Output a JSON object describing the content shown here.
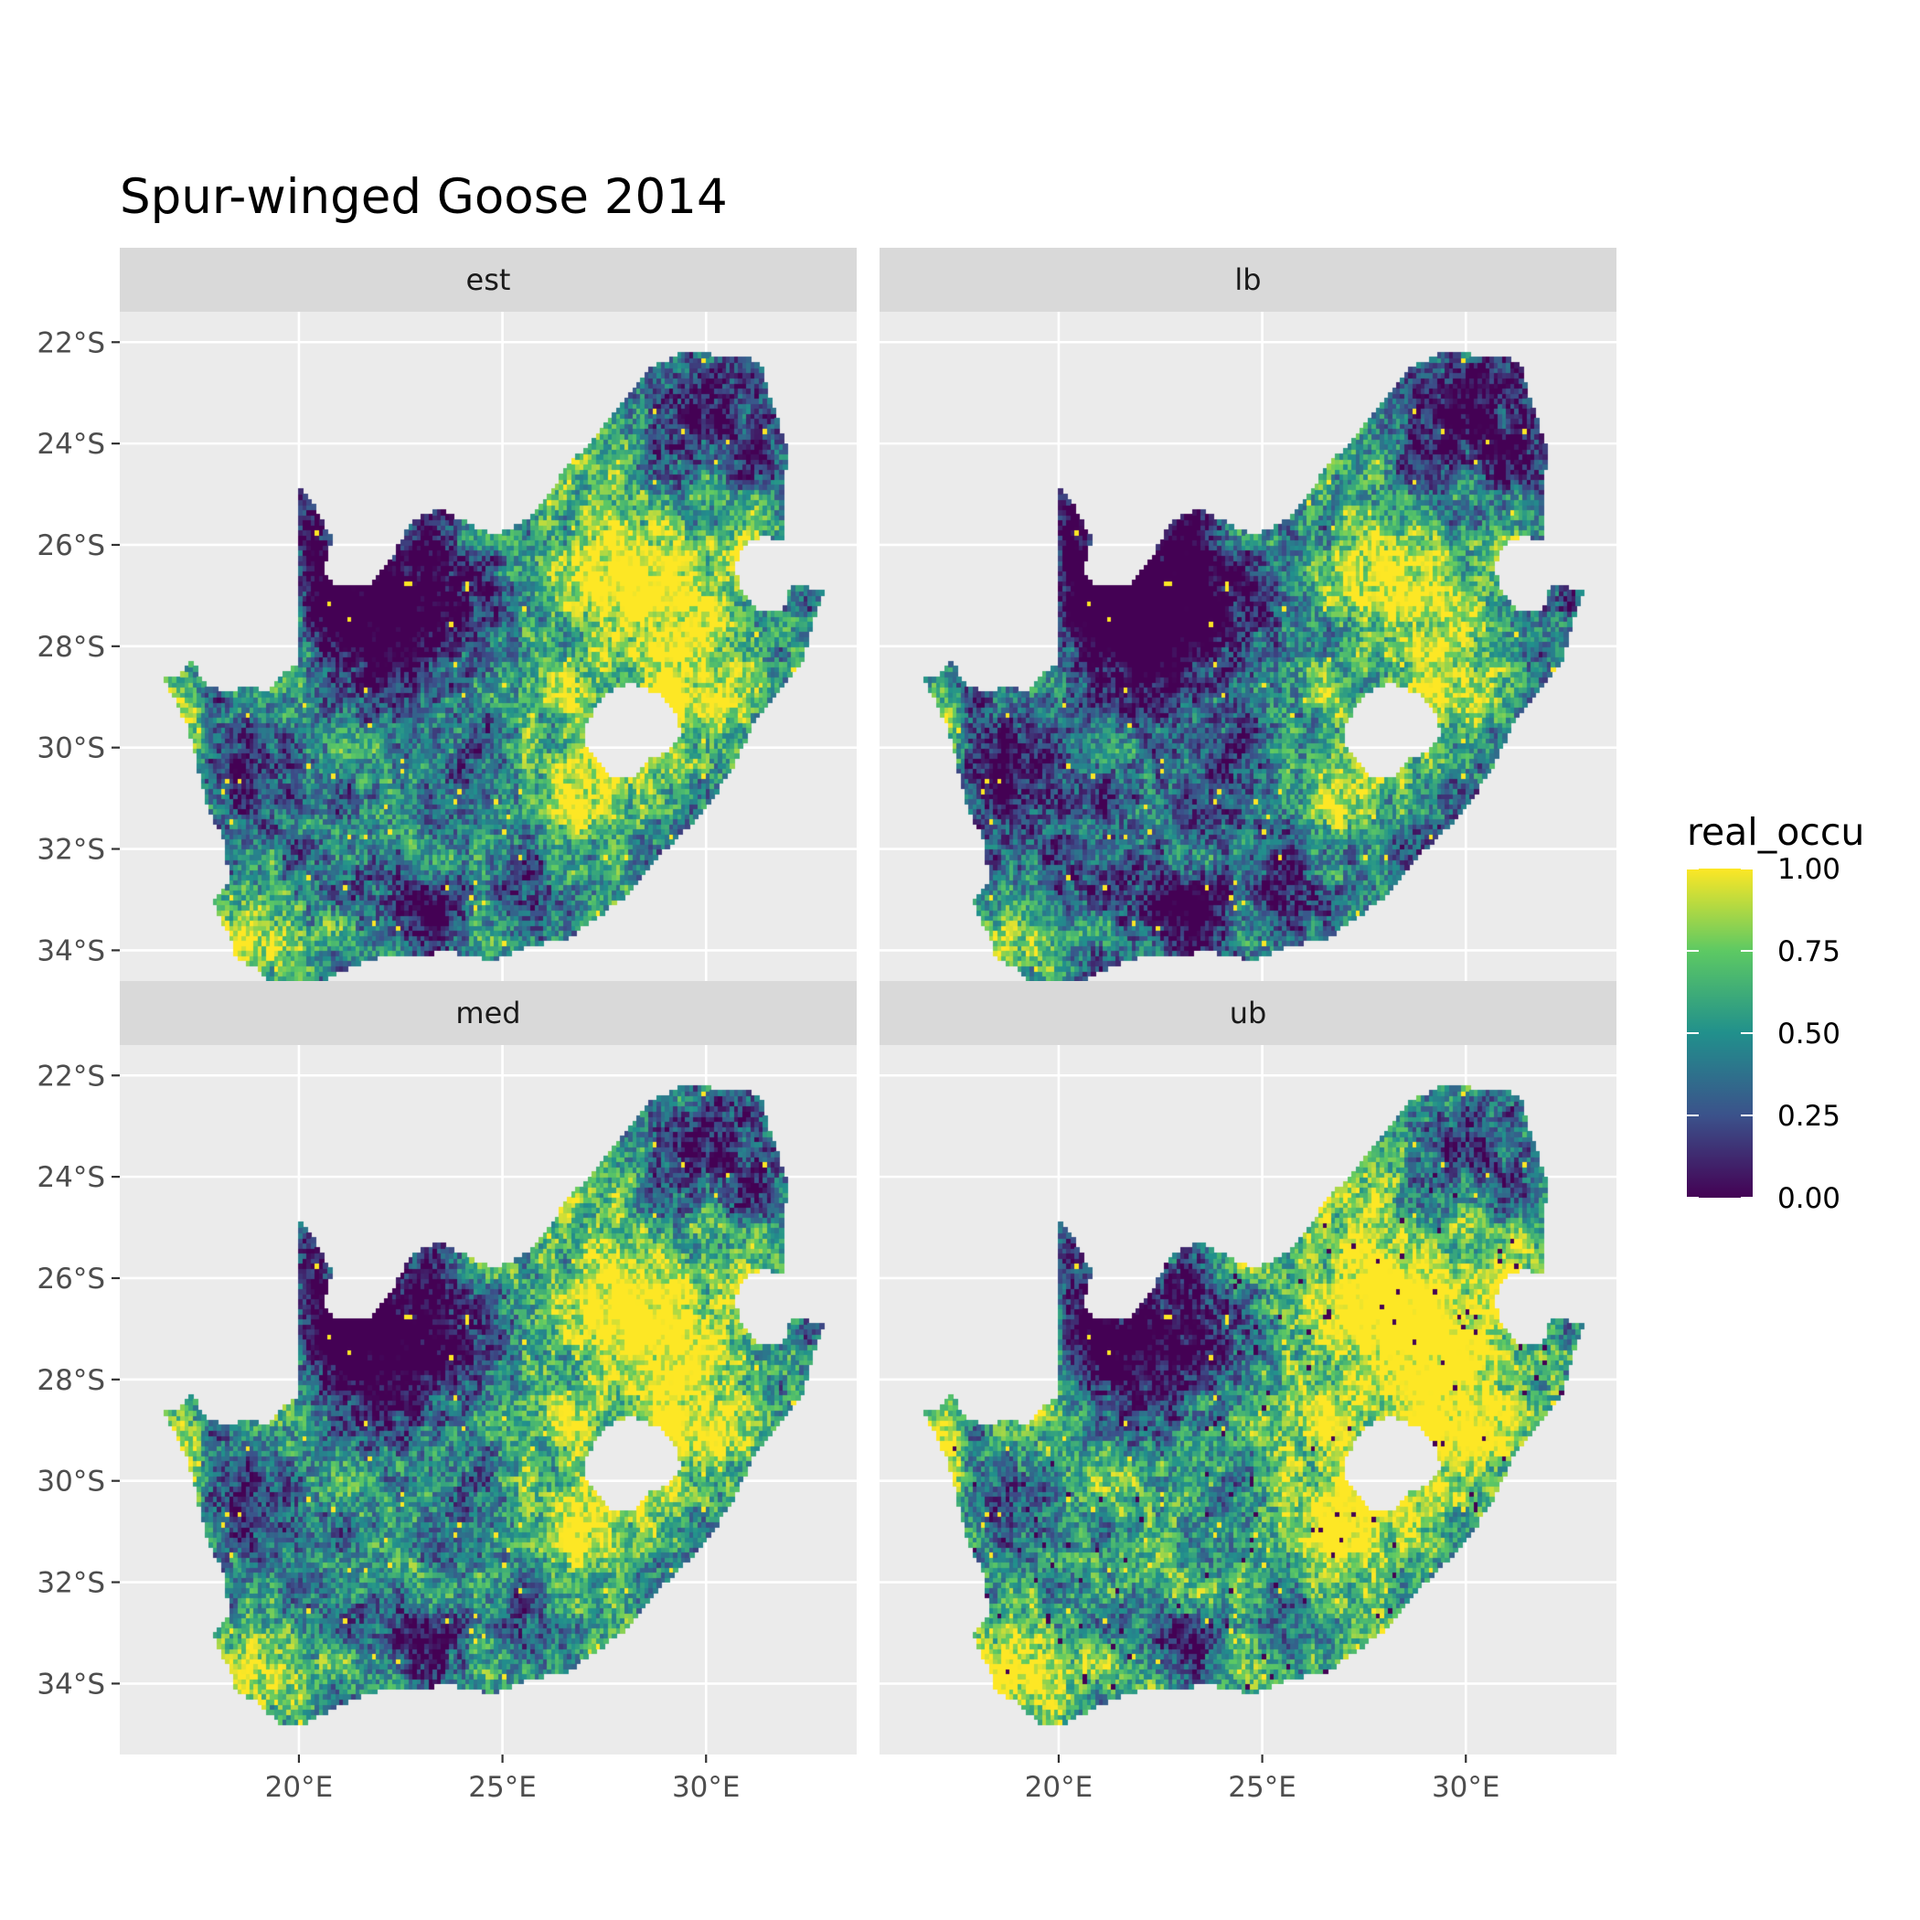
{
  "title": "Spur-winged Goose 2014",
  "facets": [
    {
      "label": "est",
      "tone": 0.0
    },
    {
      "label": "lb",
      "tone": -0.12
    },
    {
      "label": "med",
      "tone": 0.03
    },
    {
      "label": "ub",
      "tone": 0.14
    }
  ],
  "x_ticks": [
    {
      "value": 20,
      "label": "20°E"
    },
    {
      "value": 25,
      "label": "25°E"
    },
    {
      "value": 30,
      "label": "30°E"
    }
  ],
  "y_ticks": [
    {
      "value": -22,
      "label": "22°S"
    },
    {
      "value": -24,
      "label": "24°S"
    },
    {
      "value": -26,
      "label": "26°S"
    },
    {
      "value": -28,
      "label": "28°S"
    },
    {
      "value": -30,
      "label": "30°S"
    },
    {
      "value": -32,
      "label": "32°S"
    },
    {
      "value": -34,
      "label": "34°S"
    }
  ],
  "xlim": [
    15.6,
    33.7
  ],
  "ylim": [
    -35.4,
    -21.4
  ],
  "legend": {
    "title": "real_occu",
    "breaks": [
      "1.00",
      "0.75",
      "0.50",
      "0.25",
      "0.00"
    ],
    "break_values": [
      1.0,
      0.75,
      0.5,
      0.25,
      0.0
    ],
    "colors": [
      "#440154",
      "#3b528b",
      "#21908c",
      "#5dc963",
      "#fde725"
    ]
  },
  "colors": {
    "panel_bg": "#ebebeb",
    "grid": "#ffffff",
    "strip_bg": "#d9d9d9",
    "tick_text": "#4d4d4d"
  }
}
